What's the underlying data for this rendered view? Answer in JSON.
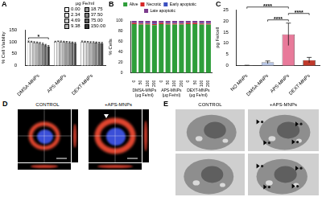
{
  "chart_data": [
    {
      "title": "A",
      "type": "bar",
      "y_label": "% Cell Viability",
      "categories": [
        "DMSA-MNPs",
        "APS-MNPs",
        "DEXT-MNPs"
      ],
      "series": [
        {
          "name": "0.00",
          "color": "#ffffff",
          "values": [
            100,
            100,
            100
          ],
          "errors": [
            3,
            2,
            3
          ]
        },
        {
          "name": "2.34",
          "color": "#e6e6e6",
          "values": [
            99,
            101,
            99
          ],
          "errors": [
            3,
            2,
            3
          ]
        },
        {
          "name": "4.69",
          "color": "#cccccc",
          "values": [
            97,
            100,
            98
          ],
          "errors": [
            3,
            3,
            3
          ]
        },
        {
          "name": "9.38",
          "color": "#b3b3b3",
          "values": [
            96,
            99,
            97
          ],
          "errors": [
            3,
            3,
            3
          ]
        },
        {
          "name": "18.75",
          "color": "#999999",
          "values": [
            94,
            98,
            97
          ],
          "errors": [
            3,
            3,
            3
          ]
        },
        {
          "name": "37.50",
          "color": "#808080",
          "values": [
            90,
            97,
            96
          ],
          "errors": [
            4,
            3,
            3
          ]
        },
        {
          "name": "75.00",
          "color": "#5f5f5f",
          "values": [
            85,
            96,
            95
          ],
          "errors": [
            4,
            3,
            3
          ]
        },
        {
          "name": "150.00",
          "color": "#3a3a3a",
          "values": [
            80,
            94,
            94
          ],
          "errors": [
            4,
            3,
            3
          ]
        }
      ],
      "legend_title": "µg Fe/ml",
      "legend": "top-right",
      "ylim": [
        0,
        150
      ],
      "yticks": [
        0,
        50,
        100,
        150
      ],
      "grid": false,
      "annotations": [
        {
          "text": "*",
          "category": "DMSA-MNPs",
          "between": [
            "0.00",
            "150.00"
          ]
        }
      ]
    },
    {
      "title": "B",
      "type": "bar",
      "stacked": true,
      "y_label": "% Cells",
      "categories": [
        "0",
        "50",
        "100",
        "200",
        "0",
        "50",
        "100",
        "200",
        "0",
        "50",
        "100",
        "200"
      ],
      "group_labels": [
        [
          "DMSA-MNPs",
          "(µg Fe/ml)"
        ],
        [
          "APS-MNPs",
          "(µg Fe/ml)"
        ],
        [
          "DEXT-MNPs",
          "(µg Fe/ml)"
        ]
      ],
      "series": [
        {
          "name": "Alive",
          "color": "#2e9e3a",
          "values": [
            94,
            93,
            93,
            92,
            94,
            93,
            93,
            93,
            94,
            94,
            93,
            93
          ]
        },
        {
          "name": "Necrotic",
          "color": "#d62728",
          "values": [
            2,
            2,
            2,
            2,
            2,
            2,
            2,
            2,
            2,
            2,
            2,
            2
          ]
        },
        {
          "name": "Early apoptotic",
          "color": "#3a4fc0",
          "values": [
            1,
            1,
            1,
            1,
            1,
            1,
            1,
            1,
            1,
            1,
            1,
            1
          ]
        },
        {
          "name": "Late apoptotic",
          "color": "#7b3a8c",
          "values": [
            3,
            4,
            4,
            5,
            3,
            4,
            4,
            4,
            3,
            3,
            4,
            4
          ]
        }
      ],
      "legend": "top",
      "ylim": [
        0,
        100
      ],
      "yticks": [
        0,
        20,
        40,
        60,
        80,
        100
      ],
      "grid": false
    },
    {
      "title": "C",
      "type": "bar",
      "y_label": "pg Fe/cell",
      "categories": [
        "NO MNPs",
        "DMSA-MNPs",
        "APS-MNPs",
        "DEXT-MNPs"
      ],
      "values": [
        0.1,
        1.5,
        14,
        2.5
      ],
      "errors": [
        0.1,
        0.6,
        5,
        1.2
      ],
      "colors": [
        "#ffffff",
        "#b9c7e6",
        "#e87a9a",
        "#c0392b"
      ],
      "ylim": [
        0,
        25
      ],
      "yticks": [
        0,
        5,
        10,
        15,
        20,
        25
      ],
      "grid": false,
      "annotations": [
        {
          "text": "****",
          "between": [
            "DMSA-MNPs",
            "APS-MNPs"
          ]
        },
        {
          "text": "****",
          "between": [
            "APS-MNPs",
            "DEXT-MNPs"
          ]
        },
        {
          "text": "****",
          "between": [
            "NO MNPs",
            "APS-MNPs"
          ]
        }
      ]
    }
  ],
  "images": [
    {
      "title": "D",
      "labels": [
        "CONTROL",
        "+APS-MNPs"
      ]
    },
    {
      "title": "E",
      "labels": [
        "CONTROL",
        "+APS-MNPs"
      ]
    }
  ]
}
